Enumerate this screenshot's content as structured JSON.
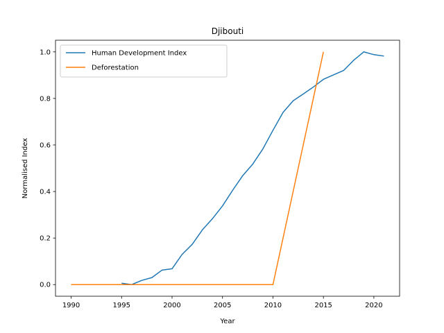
{
  "chart_data": {
    "type": "line",
    "title": "Djibouti",
    "xlabel": "Year",
    "ylabel": "Normalised Index",
    "xlim": [
      1988.45,
      2022.55
    ],
    "ylim": [
      -0.05,
      1.05
    ],
    "xticks": [
      1990,
      1995,
      2000,
      2005,
      2010,
      2015,
      2020
    ],
    "yticks": [
      0.0,
      0.2,
      0.4,
      0.6,
      0.8,
      1.0
    ],
    "xtick_labels": [
      "1990",
      "1995",
      "2000",
      "2005",
      "2010",
      "2015",
      "2020"
    ],
    "ytick_labels": [
      "0.0",
      "0.2",
      "0.4",
      "0.6",
      "0.8",
      "1.0"
    ],
    "grid": false,
    "legend_position": "top-left",
    "series": [
      {
        "name": "Human Development Index",
        "color": "#1f77b4",
        "points": [
          [
            1995,
            0.006
          ],
          [
            1996,
            0.0
          ],
          [
            1997,
            0.018
          ],
          [
            1998,
            0.03
          ],
          [
            1999,
            0.062
          ],
          [
            2000,
            0.068
          ],
          [
            2001,
            0.13
          ],
          [
            2002,
            0.173
          ],
          [
            2003,
            0.235
          ],
          [
            2004,
            0.283
          ],
          [
            2005,
            0.338
          ],
          [
            2006,
            0.405
          ],
          [
            2007,
            0.468
          ],
          [
            2008,
            0.518
          ],
          [
            2009,
            0.583
          ],
          [
            2010,
            0.663
          ],
          [
            2011,
            0.74
          ],
          [
            2012,
            0.79
          ],
          [
            2013,
            0.819
          ],
          [
            2014,
            0.849
          ],
          [
            2015,
            0.882
          ],
          [
            2016,
            0.901
          ],
          [
            2017,
            0.92
          ],
          [
            2018,
            0.964
          ],
          [
            2019,
            1.0
          ],
          [
            2020,
            0.988
          ],
          [
            2021,
            0.982
          ]
        ]
      },
      {
        "name": "Deforestation",
        "color": "#ff7f0e",
        "points": [
          [
            1990,
            0.0
          ],
          [
            1991,
            0.0
          ],
          [
            1992,
            0.0
          ],
          [
            1993,
            0.0
          ],
          [
            1994,
            0.0
          ],
          [
            1995,
            0.0
          ],
          [
            1996,
            0.0
          ],
          [
            1997,
            0.0
          ],
          [
            1998,
            0.0
          ],
          [
            1999,
            0.0
          ],
          [
            2000,
            0.0
          ],
          [
            2001,
            0.0
          ],
          [
            2002,
            0.0
          ],
          [
            2003,
            0.0
          ],
          [
            2004,
            0.0
          ],
          [
            2005,
            0.0
          ],
          [
            2006,
            0.0
          ],
          [
            2007,
            0.0
          ],
          [
            2008,
            0.0
          ],
          [
            2009,
            0.0
          ],
          [
            2010,
            0.0
          ],
          [
            2015,
            1.0
          ]
        ]
      }
    ]
  }
}
